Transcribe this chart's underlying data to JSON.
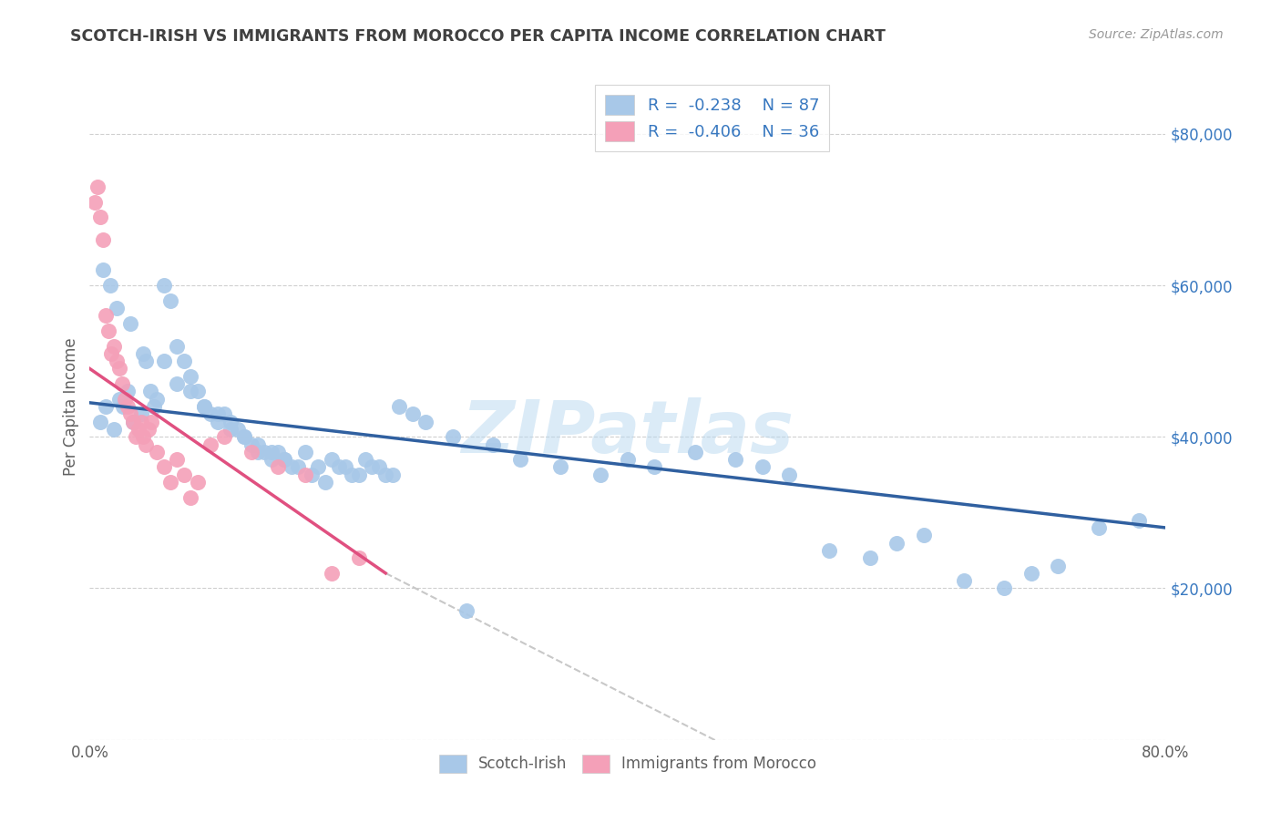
{
  "title": "SCOTCH-IRISH VS IMMIGRANTS FROM MOROCCO PER CAPITA INCOME CORRELATION CHART",
  "source": "Source: ZipAtlas.com",
  "ylabel": "Per Capita Income",
  "xlim": [
    0.0,
    0.8
  ],
  "ylim": [
    0,
    88000
  ],
  "xticks": [
    0.0,
    0.1,
    0.2,
    0.3,
    0.4,
    0.5,
    0.6,
    0.7,
    0.8
  ],
  "xticklabels": [
    "0.0%",
    "",
    "",
    "",
    "",
    "",
    "",
    "",
    "80.0%"
  ],
  "ytick_positions": [
    0,
    20000,
    40000,
    60000,
    80000
  ],
  "ytick_labels": [
    "",
    "$20,000",
    "$40,000",
    "$60,000",
    "$80,000"
  ],
  "legend_r1": "-0.238",
  "legend_n1": "87",
  "legend_r2": "-0.406",
  "legend_n2": "36",
  "color_blue": "#a8c8e8",
  "color_pink": "#f4a0b8",
  "color_blue_line": "#3060a0",
  "color_pink_line": "#e05080",
  "color_dashed": "#c8c8c8",
  "color_text_blue": "#3878c0",
  "color_text_dark": "#404040",
  "background": "#ffffff",
  "watermark": "ZIPatlas",
  "scotch_irish_x": [
    0.008,
    0.012,
    0.018,
    0.022,
    0.025,
    0.028,
    0.032,
    0.038,
    0.042,
    0.045,
    0.048,
    0.05,
    0.055,
    0.06,
    0.065,
    0.07,
    0.075,
    0.08,
    0.085,
    0.09,
    0.095,
    0.1,
    0.105,
    0.11,
    0.115,
    0.12,
    0.125,
    0.13,
    0.135,
    0.14,
    0.145,
    0.15,
    0.16,
    0.17,
    0.18,
    0.19,
    0.2,
    0.21,
    0.22,
    0.23,
    0.24,
    0.25,
    0.27,
    0.28,
    0.3,
    0.32,
    0.35,
    0.38,
    0.4,
    0.42,
    0.45,
    0.48,
    0.5,
    0.52,
    0.55,
    0.58,
    0.6,
    0.62,
    0.65,
    0.68,
    0.7,
    0.72,
    0.75,
    0.78,
    0.01,
    0.015,
    0.02,
    0.03,
    0.04,
    0.055,
    0.065,
    0.075,
    0.085,
    0.095,
    0.105,
    0.115,
    0.125,
    0.135,
    0.145,
    0.155,
    0.165,
    0.175,
    0.185,
    0.195,
    0.205,
    0.215,
    0.225
  ],
  "scotch_irish_y": [
    42000,
    44000,
    41000,
    45000,
    44000,
    46000,
    42000,
    43000,
    50000,
    46000,
    44000,
    45000,
    60000,
    58000,
    52000,
    50000,
    48000,
    46000,
    44000,
    43000,
    42000,
    43000,
    42000,
    41000,
    40000,
    39000,
    38000,
    38000,
    37000,
    38000,
    37000,
    36000,
    38000,
    36000,
    37000,
    36000,
    35000,
    36000,
    35000,
    44000,
    43000,
    42000,
    40000,
    17000,
    39000,
    37000,
    36000,
    35000,
    37000,
    36000,
    38000,
    37000,
    36000,
    35000,
    25000,
    24000,
    26000,
    27000,
    21000,
    20000,
    22000,
    23000,
    28000,
    29000,
    62000,
    60000,
    57000,
    55000,
    51000,
    50000,
    47000,
    46000,
    44000,
    43000,
    41000,
    40000,
    39000,
    38000,
    37000,
    36000,
    35000,
    34000,
    36000,
    35000,
    37000,
    36000,
    35000
  ],
  "morocco_x": [
    0.004,
    0.006,
    0.008,
    0.01,
    0.012,
    0.014,
    0.016,
    0.018,
    0.02,
    0.022,
    0.024,
    0.026,
    0.028,
    0.03,
    0.032,
    0.034,
    0.036,
    0.038,
    0.04,
    0.042,
    0.044,
    0.046,
    0.05,
    0.055,
    0.06,
    0.065,
    0.07,
    0.075,
    0.08,
    0.09,
    0.1,
    0.12,
    0.14,
    0.16,
    0.18,
    0.2
  ],
  "morocco_y": [
    71000,
    73000,
    69000,
    66000,
    56000,
    54000,
    51000,
    52000,
    50000,
    49000,
    47000,
    45000,
    44000,
    43000,
    42000,
    40000,
    41000,
    42000,
    40000,
    39000,
    41000,
    42000,
    38000,
    36000,
    34000,
    37000,
    35000,
    32000,
    34000,
    39000,
    40000,
    38000,
    36000,
    35000,
    22000,
    24000
  ],
  "blue_line_x": [
    0.0,
    0.8
  ],
  "blue_line_y": [
    44500,
    28000
  ],
  "pink_line_x": [
    0.0,
    0.22
  ],
  "pink_line_y": [
    49000,
    22000
  ],
  "dashed_line_x": [
    0.22,
    0.52
  ],
  "dashed_line_y": [
    22000,
    -5000
  ]
}
